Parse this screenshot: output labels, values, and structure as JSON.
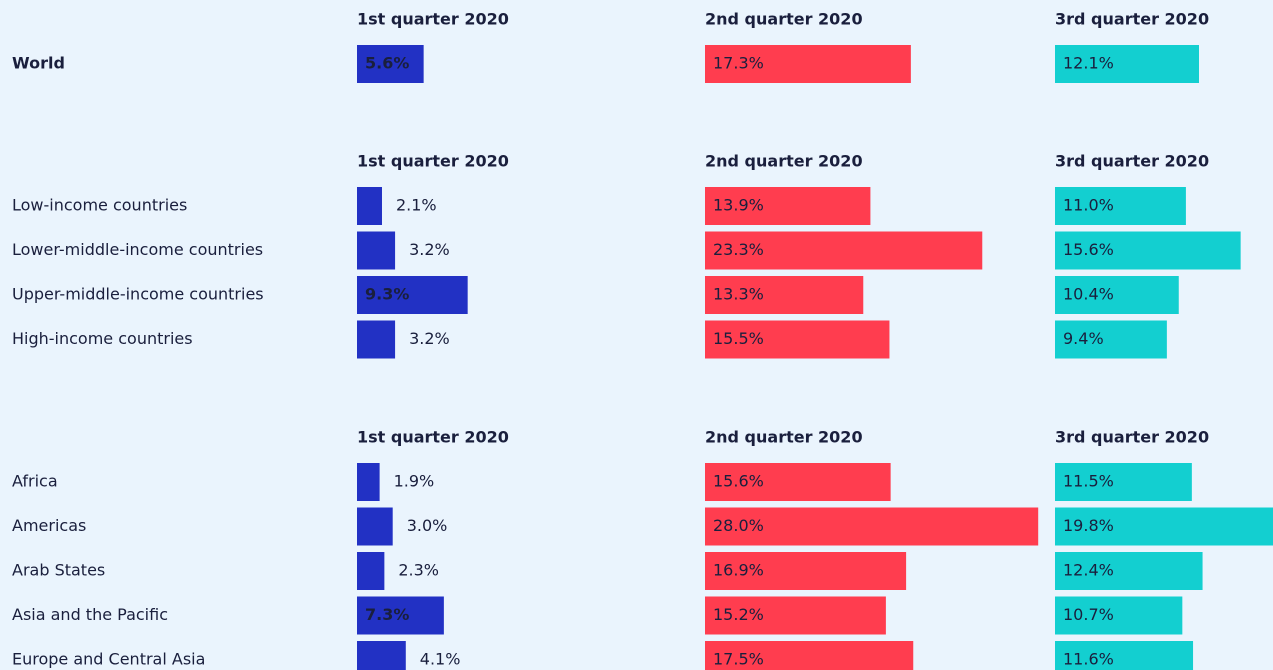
{
  "chart_data": {
    "type": "bar",
    "colors": [
      "#2231c4",
      "#ff3d4f",
      "#13cfd0"
    ],
    "groups": [
      {
        "columns": [
          "1st quarter 2020",
          "2nd quarter 2020",
          "3rd quarter 2020"
        ],
        "rows": [
          {
            "label": "World",
            "values": [
              5.6,
              17.3,
              12.1
            ],
            "value_labels": [
              "5.6%",
              "17.3%",
              "12.1%"
            ]
          }
        ]
      },
      {
        "columns": [
          "1st quarter 2020",
          "2nd quarter 2020",
          "3rd quarter 2020"
        ],
        "rows": [
          {
            "label": "Low-income countries",
            "values": [
              2.1,
              13.9,
              11.0
            ],
            "value_labels": [
              "2.1%",
              "13.9%",
              "11.0%"
            ]
          },
          {
            "label": "Lower-middle-income countries",
            "values": [
              3.2,
              23.3,
              15.6
            ],
            "value_labels": [
              "3.2%",
              "23.3%",
              "15.6%"
            ]
          },
          {
            "label": "Upper-middle-income countries",
            "values": [
              9.3,
              13.3,
              10.4
            ],
            "value_labels": [
              "9.3%",
              "13.3%",
              "10.4%"
            ]
          },
          {
            "label": "High-income countries",
            "values": [
              3.2,
              15.5,
              9.4
            ],
            "value_labels": [
              "3.2%",
              "15.5%",
              "9.4%"
            ]
          }
        ]
      },
      {
        "columns": [
          "1st quarter 2020",
          "2nd quarter 2020",
          "3rd quarter 2020"
        ],
        "rows": [
          {
            "label": "Africa",
            "values": [
              1.9,
              15.6,
              11.5
            ],
            "value_labels": [
              "1.9%",
              "15.6%",
              "11.5%"
            ]
          },
          {
            "label": "Americas",
            "values": [
              3.0,
              28.0,
              19.8
            ],
            "value_labels": [
              "3.0%",
              "28.0%",
              "19.8%"
            ]
          },
          {
            "label": "Arab States",
            "values": [
              2.3,
              16.9,
              12.4
            ],
            "value_labels": [
              "2.3%",
              "16.9%",
              "12.4%"
            ]
          },
          {
            "label": "Asia and the Pacific",
            "values": [
              7.3,
              15.2,
              10.7
            ],
            "value_labels": [
              "7.3%",
              "15.2%",
              "10.7%"
            ]
          },
          {
            "label": "Europe and Central Asia",
            "values": [
              4.1,
              17.5,
              11.6
            ],
            "value_labels": [
              "4.1%",
              "17.5%",
              "11.6%"
            ]
          }
        ]
      }
    ]
  }
}
